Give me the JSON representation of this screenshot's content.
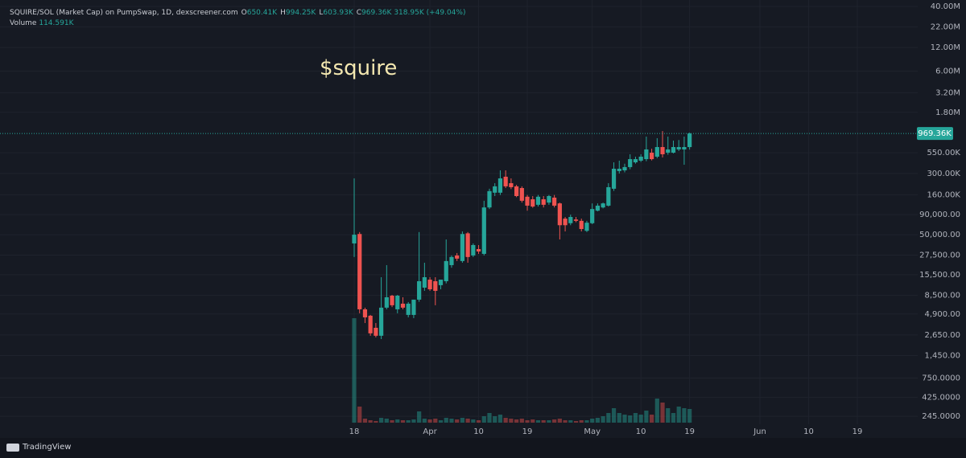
{
  "chart_data": {
    "type": "candlestick",
    "symbol": "SQUIRE/SOL (Market Cap) on PumpSwap, 1D, dexscreener.com",
    "ohlc_legend": [
      {
        "key": "O",
        "label": "650.41K"
      },
      {
        "key": "H",
        "label": "994.25K"
      },
      {
        "key": "L",
        "label": "603.93K"
      },
      {
        "key": "C",
        "label": "969.36K"
      }
    ],
    "change_label": "318.95K (+49.04%)",
    "volume_legend": {
      "title": "Volume",
      "label": "114.591K"
    },
    "annotation": "$squire",
    "watermark": "TradingView",
    "log_scale": true,
    "grid": true,
    "up_color": "#26a69a",
    "down_color": "#ef5350",
    "ylim": [
      194,
      48300000
    ],
    "yticks": [
      {
        "value": 40000000,
        "label": "40.00M"
      },
      {
        "value": 22000000,
        "label": "22.00M"
      },
      {
        "value": 12000000,
        "label": "12.00M"
      },
      {
        "value": 6000000,
        "label": "6.00M"
      },
      {
        "value": 3200000,
        "label": "3.20M"
      },
      {
        "value": 1800000,
        "label": "1.80M"
      },
      {
        "value": 550000,
        "label": "550.00K"
      },
      {
        "value": 300000,
        "label": "300.00K"
      },
      {
        "value": 160000,
        "label": "160.00K"
      },
      {
        "value": 90000,
        "label": "90,000.00"
      },
      {
        "value": 50000,
        "label": "50,000.00"
      },
      {
        "value": 27500,
        "label": "27,500.00"
      },
      {
        "value": 15500,
        "label": "15,500.00"
      },
      {
        "value": 8500,
        "label": "8,500.00"
      },
      {
        "value": 4900,
        "label": "4,900.00"
      },
      {
        "value": 2650,
        "label": "2,650.00"
      },
      {
        "value": 1450,
        "label": "1,450.00"
      },
      {
        "value": 750,
        "label": "750.0000"
      },
      {
        "value": 425,
        "label": "425.0000"
      },
      {
        "value": 245,
        "label": "245.0000"
      }
    ],
    "xticks": [
      {
        "value": "03-18",
        "label": "18"
      },
      {
        "value": "04-01",
        "label": "Apr"
      },
      {
        "value": "04-10",
        "label": "10"
      },
      {
        "value": "04-19",
        "label": "19"
      },
      {
        "value": "05-01",
        "label": "May"
      },
      {
        "value": "05-10",
        "label": "10"
      },
      {
        "value": "05-19",
        "label": "19"
      },
      {
        "value": "06-01",
        "label": "Jun"
      },
      {
        "value": "06-10",
        "label": "10"
      },
      {
        "value": "06-19",
        "label": "19"
      }
    ],
    "x": [
      "03-18",
      "03-19",
      "03-20",
      "03-21",
      "03-22",
      "03-23",
      "03-24",
      "03-25",
      "03-26",
      "03-27",
      "03-28",
      "03-29",
      "03-30",
      "03-31",
      "04-01",
      "04-02",
      "04-03",
      "04-04",
      "04-05",
      "04-06",
      "04-07",
      "04-08",
      "04-09",
      "04-10",
      "04-11",
      "04-12",
      "04-13",
      "04-14",
      "04-15",
      "04-16",
      "04-17",
      "04-18",
      "04-19",
      "04-20",
      "04-21",
      "04-22",
      "04-23",
      "04-24",
      "04-25",
      "04-26",
      "04-27",
      "04-28",
      "04-29",
      "04-30",
      "05-01",
      "05-02",
      "05-03",
      "05-04",
      "05-05",
      "05-06",
      "05-07",
      "05-08",
      "05-09",
      "05-10",
      "05-11",
      "05-12",
      "05-13",
      "05-14",
      "05-15",
      "05-16",
      "05-17",
      "05-18",
      "05-19"
    ],
    "open": [
      38700,
      51000,
      5620,
      4660,
      3270,
      2590,
      5900,
      8380,
      5620,
      6630,
      4770,
      4770,
      7460,
      10600,
      13400,
      12800,
      11400,
      12800,
      20500,
      27200,
      23100,
      52000,
      27200,
      32800,
      28500,
      111000,
      171000,
      171000,
      273000,
      226000,
      206000,
      196000,
      152000,
      141000,
      120000,
      141000,
      128000,
      148000,
      125000,
      80000,
      70000,
      78000,
      75000,
      56000,
      70000,
      101000,
      111000,
      117000,
      192000,
      322000,
      329000,
      362000,
      416000,
      437000,
      457000,
      552000,
      491000,
      651000,
      552000,
      552000,
      607000,
      607000,
      650410
    ],
    "high": [
      260000,
      54000,
      5900,
      4770,
      3760,
      14400,
      20500,
      8570,
      8570,
      8000,
      6950,
      7460,
      54000,
      22000,
      14400,
      14400,
      13400,
      43500,
      27200,
      29200,
      55000,
      54000,
      38700,
      36900,
      135000,
      192000,
      226000,
      329000,
      329000,
      260000,
      215000,
      206000,
      160000,
      155000,
      160000,
      155000,
      160000,
      160000,
      128000,
      84000,
      90000,
      84000,
      80000,
      75000,
      125000,
      125000,
      128000,
      226000,
      416000,
      437000,
      400000,
      527000,
      491000,
      527000,
      884000,
      620000,
      844000,
      1040000,
      884000,
      786000,
      800000,
      884000,
      994250
    ],
    "low": [
      26000,
      5000,
      3760,
      2590,
      2470,
      2350,
      5620,
      6000,
      5000,
      5620,
      4440,
      4340,
      7000,
      9650,
      9650,
      6330,
      10100,
      12000,
      19000,
      23100,
      22000,
      22000,
      26000,
      28500,
      27200,
      106000,
      155000,
      160000,
      196000,
      190000,
      150000,
      128000,
      101000,
      110000,
      114000,
      111000,
      120000,
      111000,
      43500,
      55000,
      66000,
      72000,
      55000,
      54000,
      68000,
      99000,
      108000,
      114000,
      180000,
      300000,
      310000,
      340000,
      400000,
      420000,
      430000,
      440000,
      470000,
      480000,
      520000,
      540000,
      580000,
      388000,
      603930
    ],
    "close": [
      50000,
      5620,
      4440,
      2780,
      2590,
      5900,
      8000,
      6330,
      8380,
      5900,
      6630,
      7460,
      12800,
      14400,
      10100,
      9650,
      13400,
      23100,
      26000,
      24800,
      51000,
      26000,
      36900,
      30600,
      111000,
      179000,
      206000,
      260000,
      206000,
      201000,
      155000,
      135000,
      117000,
      114000,
      152000,
      120000,
      155000,
      117000,
      66000,
      66000,
      84000,
      75000,
      59000,
      71000,
      106000,
      117000,
      125000,
      201000,
      345000,
      345000,
      362000,
      457000,
      457000,
      491000,
      607000,
      457000,
      651000,
      527000,
      607000,
      651000,
      651000,
      651000,
      969360
    ],
    "volume": [
      876000,
      134800,
      33700,
      20200,
      13500,
      40400,
      33700,
      20200,
      27000,
      20200,
      20200,
      27000,
      94400,
      33700,
      27000,
      33700,
      20200,
      40400,
      33700,
      27000,
      40400,
      33700,
      27000,
      20200,
      53900,
      80900,
      53900,
      67400,
      40400,
      33700,
      27000,
      33700,
      20200,
      27000,
      20200,
      20200,
      20200,
      27000,
      33700,
      20200,
      20200,
      13500,
      20200,
      20200,
      33700,
      40400,
      53900,
      80900,
      121300,
      80900,
      67400,
      60700,
      80900,
      67400,
      101100,
      67400,
      202200,
      168500,
      121300,
      80900,
      134800,
      121300,
      114591
    ]
  }
}
